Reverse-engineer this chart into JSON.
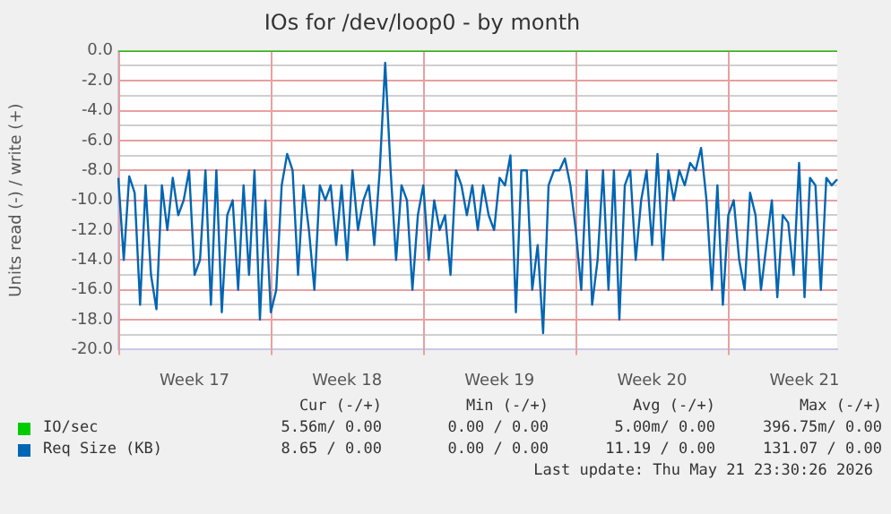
{
  "chart_data": {
    "type": "line",
    "title": "IOs for /dev/loop0 - by month",
    "ylabel": "Units read (-) / write (+)",
    "categories": [
      null,
      null,
      null,
      null,
      null,
      null,
      null,
      null,
      null,
      null,
      null,
      null,
      null,
      null,
      "Week 17",
      null,
      null,
      null,
      null,
      null,
      null,
      null,
      null,
      null,
      null,
      null,
      null,
      null,
      null,
      null,
      null,
      null,
      null,
      null,
      null,
      null,
      null,
      null,
      null,
      null,
      null,
      null,
      "Week 18",
      null,
      null,
      null,
      null,
      null,
      null,
      null,
      null,
      null,
      null,
      null,
      null,
      null,
      null,
      null,
      null,
      null,
      null,
      null,
      null,
      null,
      null,
      null,
      null,
      null,
      null,
      null,
      "Week 19",
      null,
      null,
      null,
      null,
      null,
      null,
      null,
      null,
      null,
      null,
      null,
      null,
      null,
      null,
      null,
      null,
      null,
      null,
      null,
      null,
      null,
      null,
      null,
      null,
      null,
      null,
      null,
      "Week 20",
      null,
      null,
      null,
      null,
      null,
      null,
      null,
      null,
      null,
      null,
      null,
      null,
      null,
      null,
      null,
      null,
      null,
      null,
      null,
      null,
      null,
      null,
      null,
      null,
      null,
      null,
      null,
      "Week 21",
      null,
      null,
      null,
      null,
      null,
      null
    ],
    "ylim": [
      -20,
      0
    ],
    "yticks": [
      {
        "value": 0,
        "label": "0.0"
      },
      {
        "value": -1,
        "label": null
      },
      {
        "value": -2,
        "label": "-2.0"
      },
      {
        "value": -3,
        "label": null
      },
      {
        "value": -4,
        "label": "-4.0"
      },
      {
        "value": -5,
        "label": null
      },
      {
        "value": -6,
        "label": "-6.0"
      },
      {
        "value": -7,
        "label": null
      },
      {
        "value": -8,
        "label": "-8.0"
      },
      {
        "value": -9,
        "label": null
      },
      {
        "value": -10,
        "label": "-10.0"
      },
      {
        "value": -11,
        "label": null
      },
      {
        "value": -12,
        "label": "-12.0"
      },
      {
        "value": -13,
        "label": null
      },
      {
        "value": -14,
        "label": "-14.0"
      },
      {
        "value": -15,
        "label": null
      },
      {
        "value": -16,
        "label": "-16.0"
      },
      {
        "value": -17,
        "label": null
      },
      {
        "value": -18,
        "label": "-18.0"
      },
      {
        "value": -19,
        "label": null
      },
      {
        "value": -20,
        "label": "-20.0"
      }
    ],
    "grid": true,
    "legend": "bottom left",
    "marker": "none",
    "line_style": "solid",
    "series": [
      {
        "name": "IO/sec",
        "color": "#00cc00",
        "values": [
          0,
          0,
          0,
          0,
          0,
          0,
          0,
          0,
          0,
          0,
          0,
          0,
          0,
          0,
          0,
          0,
          0,
          0,
          0,
          0,
          0,
          0,
          0,
          0,
          0,
          0,
          0,
          0,
          0,
          0,
          0,
          0,
          0,
          0,
          0,
          0,
          0,
          0,
          0,
          0,
          0,
          0,
          0,
          0,
          0,
          0,
          0,
          0,
          0,
          0,
          0,
          0,
          0,
          0,
          0,
          0,
          0,
          0,
          0,
          0,
          0,
          0,
          0,
          0,
          0,
          0,
          0,
          0,
          0,
          0,
          0,
          0,
          0,
          0,
          0,
          0,
          0,
          0,
          0,
          0,
          0,
          0,
          0,
          0,
          0,
          0,
          0,
          0,
          0,
          0,
          0,
          0,
          0,
          0,
          0,
          0,
          0,
          0,
          0,
          0,
          0,
          0,
          0,
          0,
          0,
          0,
          0,
          0,
          0,
          0,
          0,
          0,
          0,
          0,
          0,
          0,
          0,
          0,
          0,
          0,
          0,
          0,
          0,
          0,
          0,
          0,
          0,
          0,
          0,
          0,
          0,
          0,
          0
        ]
      },
      {
        "name": "Req Size (KB)",
        "color": "#0066b3",
        "values": [
          -8.5,
          -14,
          -8.4,
          -9.5,
          -17,
          -9,
          -15,
          -17.3,
          -9,
          -12,
          -8.5,
          -11,
          -10,
          -8,
          -15,
          -14,
          -8,
          -17,
          -8,
          -17.5,
          -11,
          -10,
          -16,
          -9,
          -15,
          -8,
          -18,
          -10,
          -17.5,
          -16,
          -9,
          -6.9,
          -8,
          -15,
          -9,
          -12,
          -16,
          -9,
          -10,
          -9,
          -13,
          -9,
          -14,
          -8,
          -12,
          -10,
          -9,
          -13,
          -8,
          -0.8,
          -8,
          -14,
          -9,
          -10,
          -16,
          -11,
          -9,
          -14,
          -10,
          -12,
          -11,
          -15,
          -8,
          -9,
          -11,
          -9,
          -12,
          -9,
          -11,
          -12,
          -8.5,
          -9,
          -7,
          -17.5,
          -8,
          -8,
          -16,
          -13,
          -18.9,
          -9,
          -8,
          -8,
          -7.2,
          -9,
          -12,
          -16,
          -8,
          -17,
          -14,
          -8,
          -16,
          -8,
          -18,
          -9,
          -8,
          -14,
          -10,
          -8,
          -13,
          -6.9,
          -14,
          -8,
          -10,
          -8,
          -9,
          -7.5,
          -8,
          -6.5,
          -10,
          -16,
          -9,
          -17,
          -11,
          -10,
          -14,
          -16,
          -9.5,
          -11,
          -16,
          -13,
          -10,
          -16.5,
          -11,
          -11.5,
          -15,
          -7.5,
          -16.5,
          -8.5,
          -9,
          -16,
          -8.5,
          -9,
          -8.6
        ]
      }
    ],
    "annotations": [
      "Cur (-/+)",
      "Min (-/+)",
      "Avg (-/+)",
      "Max (-/+)",
      "5.56m/ 0.00",
      "0.00 / 0.00",
      "5.00m/ 0.00",
      "396.75m/ 0.00",
      "8.65 / 0.00",
      "0.00 / 0.00",
      "11.19 / 0.00",
      "131.07 / 0.00",
      "Last update: Thu May 21 23:30:26 2026"
    ]
  }
}
